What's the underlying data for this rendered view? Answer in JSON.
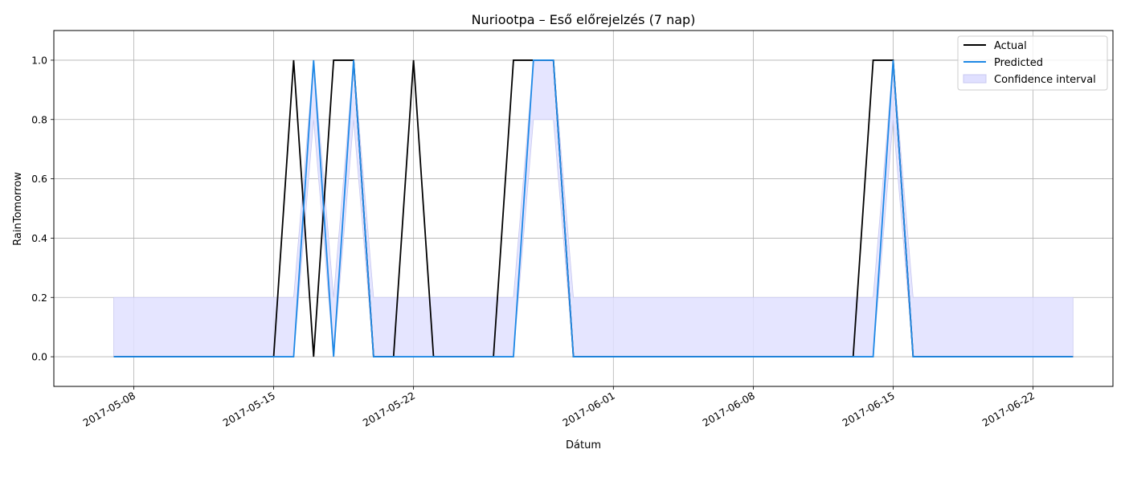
{
  "chart_data": {
    "type": "line",
    "title": "Nuriootpa – Eső előrejelzés (7 nap)",
    "xlabel": "Dátum",
    "ylabel": "RainTomorrow",
    "x_start": "2017-05-07",
    "xlim": [
      "2017-05-04",
      "2017-06-26"
    ],
    "ylim": [
      -0.1,
      1.1
    ],
    "xticks": [
      "2017-05-08",
      "2017-05-15",
      "2017-05-22",
      "2017-06-01",
      "2017-06-08",
      "2017-06-15",
      "2017-06-22"
    ],
    "yticks": [
      "0.0",
      "0.2",
      "0.4",
      "0.6",
      "0.8",
      "1.0"
    ],
    "grid": true,
    "legend_position": "top-right",
    "series": [
      {
        "name": "Actual",
        "color": "#000000",
        "values": [
          0,
          0,
          0,
          0,
          0,
          0,
          0,
          0,
          0,
          1,
          0,
          1,
          1,
          0,
          0,
          1,
          0,
          0,
          0,
          0,
          1,
          1,
          1,
          0,
          0,
          0,
          0,
          0,
          0,
          0,
          0,
          0,
          0,
          0,
          0,
          0,
          0,
          0,
          1,
          1,
          0,
          0,
          0,
          0,
          0,
          0,
          0,
          0,
          0
        ]
      },
      {
        "name": "Predicted",
        "color": "#1e88e5",
        "values": [
          0,
          0,
          0,
          0,
          0,
          0,
          0,
          0,
          0,
          0,
          1,
          0,
          1,
          0,
          0,
          0,
          0,
          0,
          0,
          0,
          0,
          1,
          1,
          0,
          0,
          0,
          0,
          0,
          0,
          0,
          0,
          0,
          0,
          0,
          0,
          0,
          0,
          0,
          0,
          1,
          0,
          0,
          0,
          0,
          0,
          0,
          0,
          0,
          0
        ]
      }
    ],
    "confidence_interval": {
      "name": "Confidence interval",
      "color": "#e0e0ff",
      "lower": [
        0,
        0,
        0,
        0,
        0,
        0,
        0,
        0,
        0,
        0,
        0.8,
        0,
        0.8,
        0,
        0,
        0,
        0,
        0,
        0,
        0,
        0,
        0.8,
        0.8,
        0,
        0,
        0,
        0,
        0,
        0,
        0,
        0,
        0,
        0,
        0,
        0,
        0,
        0,
        0,
        0,
        0.8,
        0,
        0,
        0,
        0,
        0,
        0,
        0,
        0,
        0
      ],
      "upper": [
        0.2,
        0.2,
        0.2,
        0.2,
        0.2,
        0.2,
        0.2,
        0.2,
        0.2,
        0.2,
        1,
        0.2,
        1,
        0.2,
        0.2,
        0.2,
        0.2,
        0.2,
        0.2,
        0.2,
        0.2,
        1,
        1,
        0.2,
        0.2,
        0.2,
        0.2,
        0.2,
        0.2,
        0.2,
        0.2,
        0.2,
        0.2,
        0.2,
        0.2,
        0.2,
        0.2,
        0.2,
        0.2,
        1,
        0.2,
        0.2,
        0.2,
        0.2,
        0.2,
        0.2,
        0.2,
        0.2,
        0.2
      ]
    }
  }
}
